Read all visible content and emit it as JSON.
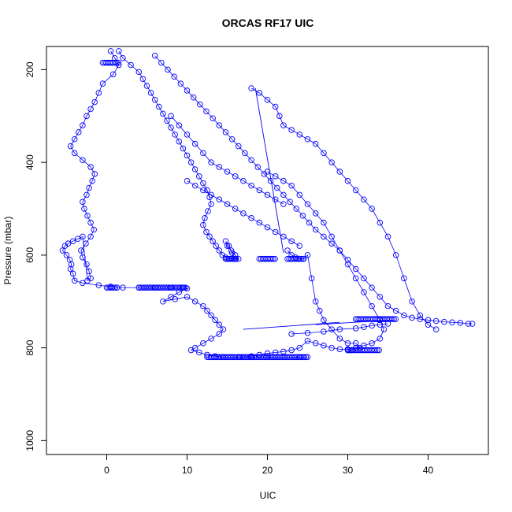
{
  "chart_data": {
    "type": "scatter",
    "title": "ORCAS RF17 UIC",
    "xlabel": "UIC",
    "ylabel": "Pressure (mbar)",
    "xlim": [
      -7.5,
      47.5
    ],
    "ylim": [
      1030,
      150
    ],
    "y_reversed": true,
    "x_ticks": [
      0,
      10,
      20,
      30,
      40
    ],
    "y_ticks": [
      200,
      400,
      600,
      800,
      1000
    ],
    "marker": "open-circle",
    "connected_line": true,
    "color": "#0000ff",
    "grid": false,
    "legend": "none",
    "series": [
      {
        "x": [
          0.5,
          1.0,
          1.5,
          0.8,
          -0.5,
          -1.0,
          -1.5,
          -2.0,
          -2.5,
          -3.0,
          -3.5,
          -4.0,
          -4.5,
          -4.0,
          -3.0,
          -2.0,
          -1.5,
          -1.8,
          -2.2,
          -2.5,
          -3.0,
          -2.8,
          -2.4,
          -2.0,
          -1.6,
          -2.0,
          -2.6,
          -3.2,
          -3.0,
          -2.5,
          -2.2,
          -2.0,
          -2.4,
          -3.0,
          -3.6,
          -4.2,
          -4.8,
          -5.2,
          -5.5,
          -5.0,
          -4.6,
          -4.4,
          -4.5,
          -4.2,
          -4.0,
          -3.0,
          -1.0,
          0.5,
          2.0,
          4.0,
          6.0,
          8.0,
          9.5,
          10.0,
          9.0,
          8.0,
          7.0,
          8.5,
          10.0,
          11.0,
          12.0,
          12.5,
          13.0,
          13.5,
          14.0,
          14.5,
          14.0,
          13.0,
          12.0,
          11.0,
          10.5,
          11.5,
          12.5,
          13.5,
          14.5,
          15.5,
          16.5,
          18.0,
          20.0,
          22.0,
          24.0,
          25.0
        ],
        "y": [
          160,
          175,
          190,
          210,
          230,
          250,
          270,
          285,
          300,
          320,
          335,
          350,
          365,
          380,
          395,
          410,
          425,
          440,
          455,
          470,
          485,
          500,
          515,
          530,
          545,
          560,
          575,
          590,
          605,
          620,
          635,
          650,
          655,
          560,
          565,
          570,
          575,
          580,
          590,
          600,
          610,
          620,
          630,
          640,
          655,
          660,
          665,
          668,
          670,
          670,
          670,
          670,
          670,
          672,
          680,
          690,
          700,
          695,
          690,
          700,
          710,
          720,
          730,
          740,
          750,
          760,
          770,
          780,
          790,
          800,
          805,
          810,
          815,
          818,
          820,
          820,
          820,
          820,
          820,
          820,
          820,
          820
        ]
      },
      {
        "x": [
          1.5,
          2.0,
          3.0,
          4.0,
          4.5,
          5.0,
          5.5,
          6.0,
          6.5,
          7.0,
          7.5,
          8.0,
          8.5,
          9.0,
          9.5,
          10.0,
          10.5,
          11.0,
          11.5,
          12.0,
          12.5,
          12.8,
          13.0,
          12.6,
          12.2,
          12.0,
          12.4,
          12.8,
          13.2,
          13.6,
          14.0,
          14.4,
          14.8,
          15.2,
          15.6,
          16.0,
          16.4,
          16.0,
          15.5,
          15.0,
          14.8,
          15.2,
          15.6,
          16.0
        ],
        "y": [
          160,
          175,
          190,
          205,
          220,
          235,
          250,
          265,
          280,
          295,
          310,
          325,
          340,
          355,
          370,
          385,
          400,
          415,
          430,
          445,
          460,
          475,
          490,
          505,
          520,
          535,
          550,
          560,
          570,
          580,
          590,
          600,
          605,
          608,
          608,
          608,
          608,
          600,
          590,
          580,
          570,
          580,
          595,
          608
        ]
      },
      {
        "x": [
          6.0,
          6.8,
          7.6,
          8.4,
          9.2,
          10.0,
          10.8,
          11.6,
          12.4,
          13.2,
          14.0,
          14.8,
          15.6,
          16.4,
          17.2,
          18.0,
          18.8,
          19.6,
          20.4,
          21.2,
          22.0,
          22.8,
          23.6,
          24.4,
          25.2,
          26.0,
          27.0,
          28.0,
          29.0,
          30.0,
          31.0,
          32.0,
          33.0,
          34.0,
          35.0,
          36.0,
          37.0,
          38.0,
          39.0,
          40.0,
          41.0,
          42.0,
          43.0,
          44.0,
          45.0,
          45.5
        ],
        "y": [
          170,
          185,
          200,
          215,
          230,
          245,
          260,
          275,
          290,
          305,
          320,
          335,
          350,
          365,
          380,
          395,
          410,
          425,
          440,
          455,
          470,
          485,
          500,
          515,
          530,
          545,
          560,
          575,
          590,
          610,
          630,
          650,
          670,
          690,
          710,
          720,
          730,
          735,
          738,
          740,
          742,
          744,
          745,
          746,
          748,
          748
        ]
      },
      {
        "x": [
          18.0,
          19.0,
          20.0,
          21.0,
          21.5,
          22.0,
          23.0,
          24.0,
          25.0,
          26.0,
          27.0,
          28.0,
          29.0,
          30.0,
          31.0,
          32.0,
          33.0,
          34.0,
          35.0,
          36.0,
          37.0,
          38.0,
          39.0,
          40.0,
          41.0
        ],
        "y": [
          240,
          250,
          265,
          280,
          300,
          320,
          330,
          340,
          350,
          360,
          380,
          400,
          420,
          440,
          460,
          480,
          500,
          530,
          560,
          600,
          650,
          700,
          730,
          750,
          760
        ]
      },
      {
        "x": [
          20.0,
          21.0,
          22.0,
          23.0,
          24.0,
          25.0,
          26.0,
          27.0,
          28.0,
          29.0,
          30.0,
          31.0,
          32.0,
          33.0,
          34.0,
          34.5,
          34.0,
          33.0,
          32.0,
          31.0,
          30.0,
          29.0,
          28.0,
          27.0,
          26.0,
          25.0,
          24.0,
          23.0,
          22.0,
          21.0,
          20.0,
          19.0,
          18.0,
          17.0
        ],
        "y": [
          420,
          430,
          440,
          450,
          470,
          490,
          510,
          530,
          560,
          590,
          620,
          650,
          680,
          710,
          740,
          760,
          780,
          790,
          795,
          800,
          803,
          803,
          800,
          795,
          790,
          785,
          800,
          805,
          808,
          810,
          812,
          815,
          818,
          820
        ]
      },
      {
        "x": [
          22.5,
          23.0,
          23.5,
          24.0,
          24.5,
          25.0,
          25.5,
          26.0,
          26.5,
          27.0,
          28.0,
          29.0,
          30.0,
          31.0,
          31.5,
          30.5,
          30.0
        ],
        "y": [
          590,
          600,
          605,
          608,
          608,
          600,
          650,
          700,
          720,
          740,
          760,
          780,
          790,
          790,
          800,
          805,
          805
        ]
      },
      {
        "x": [
          23.0,
          25.0,
          27.0,
          29.0,
          31.0,
          32.0,
          33.0,
          34.0,
          35.0
        ],
        "y": [
          770,
          768,
          765,
          760,
          758,
          755,
          752,
          750,
          748
        ]
      },
      {
        "x": [
          10.0,
          11.0,
          12.0,
          13.0,
          14.0,
          15.0,
          16.0,
          17.0,
          18.0,
          19.0,
          20.0,
          21.0,
          22.0,
          23.0,
          24.0
        ],
        "y": [
          440,
          450,
          460,
          470,
          480,
          490,
          500,
          510,
          520,
          530,
          540,
          550,
          560,
          570,
          580
        ]
      },
      {
        "x": [
          8.0,
          9.0,
          10.0,
          11.0,
          12.0,
          13.0,
          14.0,
          15.0,
          16.0,
          17.0,
          18.0,
          19.0,
          20.0,
          21.0,
          22.0
        ],
        "y": [
          300,
          320,
          340,
          360,
          380,
          400,
          410,
          420,
          430,
          440,
          450,
          460,
          470,
          480,
          490
        ]
      }
    ],
    "lines": [
      {
        "x": [
          18.5,
          22.0
        ],
        "y": [
          240,
          595
        ]
      },
      {
        "x": [
          17.0,
          29.0
        ],
        "y": [
          760,
          745
        ]
      },
      {
        "x": [
          26.0,
          35.5
        ],
        "y": [
          750,
          740
        ]
      }
    ],
    "clusters": [
      {
        "x_from": -0.5,
        "x_to": 1.5,
        "y": 185
      },
      {
        "x_from": 4.0,
        "x_to": 10.0,
        "y": 670
      },
      {
        "x_from": 0.0,
        "x_to": 1.5,
        "y": 670
      },
      {
        "x_from": 12.5,
        "x_to": 25.0,
        "y": 820
      },
      {
        "x_from": 14.8,
        "x_to": 16.3,
        "y": 608
      },
      {
        "x_from": 19.0,
        "x_to": 21.0,
        "y": 608
      },
      {
        "x_from": 22.5,
        "x_to": 24.5,
        "y": 608
      },
      {
        "x_from": 30.0,
        "x_to": 34.0,
        "y": 805
      },
      {
        "x_from": 31.0,
        "x_to": 36.0,
        "y": 738
      }
    ]
  }
}
